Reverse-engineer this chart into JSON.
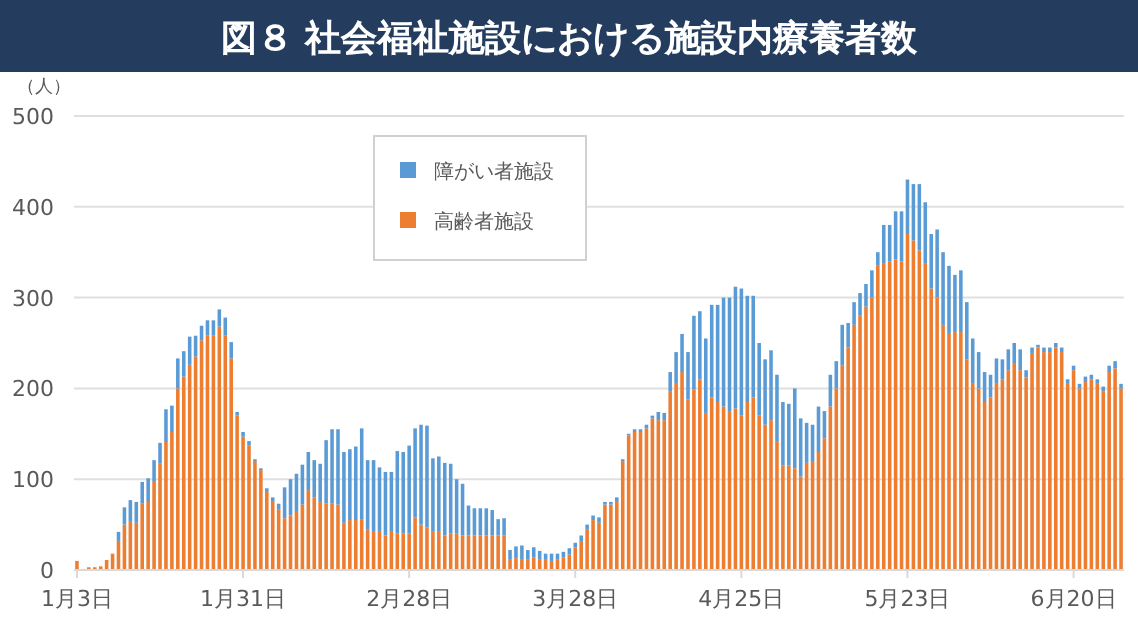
{
  "chart_data": {
    "type": "bar",
    "stacked": true,
    "title": "図８ 社会福祉施設における施設内療養者数",
    "ylabel": "（人）",
    "categories": [
      "1月3日",
      null,
      null,
      null,
      null,
      null,
      null,
      null,
      null,
      null,
      null,
      null,
      null,
      null,
      null,
      null,
      null,
      null,
      null,
      null,
      null,
      null,
      null,
      null,
      null,
      null,
      null,
      null,
      "1月31日",
      null,
      null,
      null,
      null,
      null,
      null,
      null,
      null,
      null,
      null,
      null,
      null,
      null,
      null,
      null,
      null,
      null,
      null,
      null,
      null,
      null,
      null,
      null,
      null,
      null,
      null,
      null,
      "2月28日",
      null,
      null,
      null,
      null,
      null,
      null,
      null,
      null,
      null,
      null,
      null,
      null,
      null,
      null,
      null,
      null,
      null,
      null,
      null,
      null,
      null,
      null,
      null,
      null,
      null,
      null,
      null,
      "3月28日",
      null,
      null,
      null,
      null,
      null,
      null,
      null,
      null,
      null,
      null,
      null,
      null,
      null,
      null,
      null,
      null,
      null,
      null,
      null,
      null,
      null,
      null,
      null,
      null,
      null,
      null,
      null,
      "4月25日",
      null,
      null,
      null,
      null,
      null,
      null,
      null,
      null,
      null,
      null,
      null,
      null,
      null,
      null,
      null,
      null,
      null,
      null,
      null,
      null,
      null,
      null,
      null,
      null,
      null,
      null,
      null,
      "5月23日",
      null,
      null,
      null,
      null,
      null,
      null,
      null,
      null,
      null,
      null,
      null,
      null,
      null,
      null,
      null,
      null,
      null,
      null,
      null,
      null,
      null,
      null,
      null,
      null,
      null,
      null,
      null,
      "6月20日",
      null,
      null,
      null,
      null,
      null,
      null,
      null,
      null
    ],
    "series": [
      {
        "name": "高齢者施設",
        "color": "#ed7d31",
        "values": [
          10,
          1,
          3,
          3,
          4,
          11,
          18,
          32,
          50,
          53,
          52,
          73,
          76,
          98,
          117,
          141,
          152,
          200,
          213,
          226,
          235,
          253,
          258,
          258,
          268,
          258,
          233,
          170,
          147,
          137,
          120,
          110,
          86,
          75,
          67,
          57,
          60,
          65,
          72,
          88,
          80,
          75,
          73,
          73,
          72,
          52,
          55,
          55,
          56,
          45,
          43,
          43,
          38,
          42,
          40,
          40,
          40,
          58,
          50,
          47,
          42,
          42,
          38,
          40,
          40,
          38,
          38,
          38,
          38,
          38,
          38,
          38,
          38,
          12,
          13,
          12,
          12,
          14,
          12,
          12,
          10,
          12,
          14,
          17,
          25,
          32,
          45,
          55,
          52,
          72,
          72,
          76,
          120,
          148,
          152,
          152,
          156,
          167,
          165,
          165,
          197,
          206,
          218,
          188,
          199,
          210,
          173,
          190,
          185,
          180,
          175,
          178,
          170,
          185,
          190,
          170,
          160,
          165,
          142,
          115,
          115,
          112,
          103,
          118,
          120,
          130,
          145,
          180,
          200,
          225,
          245,
          270,
          280,
          290,
          300,
          335,
          338,
          340,
          342,
          340,
          370,
          363,
          352,
          338,
          310,
          300,
          270,
          260,
          262,
          262,
          232,
          205,
          200,
          185,
          190,
          205,
          210,
          220,
          227,
          220,
          212,
          238,
          245,
          240,
          240,
          245,
          240,
          205,
          220,
          200,
          207,
          210,
          205,
          197,
          218,
          222,
          200
        ]
      },
      {
        "name": "障がい者施設",
        "color": "#5b9bd5",
        "values": [
          0,
          0,
          0,
          0,
          0,
          0,
          0,
          10,
          19,
          24,
          23,
          24,
          25,
          23,
          23,
          36,
          29,
          33,
          28,
          31,
          23,
          16,
          17,
          17,
          19,
          20,
          18,
          4,
          5,
          5,
          2,
          2,
          4,
          5,
          6,
          34,
          40,
          41,
          44,
          42,
          41,
          42,
          70,
          82,
          83,
          78,
          78,
          81,
          100,
          76,
          78,
          70,
          70,
          66,
          91,
          90,
          97,
          98,
          110,
          112,
          81,
          83,
          80,
          77,
          60,
          57,
          33,
          30,
          30,
          30,
          28,
          18,
          19,
          10,
          13,
          15,
          10,
          11,
          9,
          6,
          8,
          6,
          6,
          7,
          5,
          6,
          5,
          5,
          6,
          3,
          3,
          4,
          2,
          2,
          3,
          3,
          4,
          3,
          9,
          8,
          21,
          34,
          42,
          52,
          81,
          75,
          82,
          102,
          107,
          120,
          125,
          134,
          140,
          117,
          112,
          80,
          72,
          77,
          73,
          70,
          68,
          88,
          64,
          44,
          40,
          50,
          30,
          35,
          30,
          45,
          27,
          25,
          25,
          25,
          30,
          15,
          42,
          40,
          53,
          55,
          60,
          62,
          73,
          67,
          60,
          75,
          80,
          75,
          63,
          68,
          63,
          50,
          40,
          33,
          25,
          28,
          22,
          23,
          23,
          23,
          8,
          7,
          3,
          5,
          5,
          5,
          5,
          5,
          5,
          5,
          6,
          5,
          5,
          5,
          7,
          8,
          5
        ]
      }
    ],
    "ylim": [
      0,
      500
    ],
    "yticks": [
      0,
      100,
      200,
      300,
      400,
      500
    ],
    "grid": "y",
    "legend": "top left"
  }
}
